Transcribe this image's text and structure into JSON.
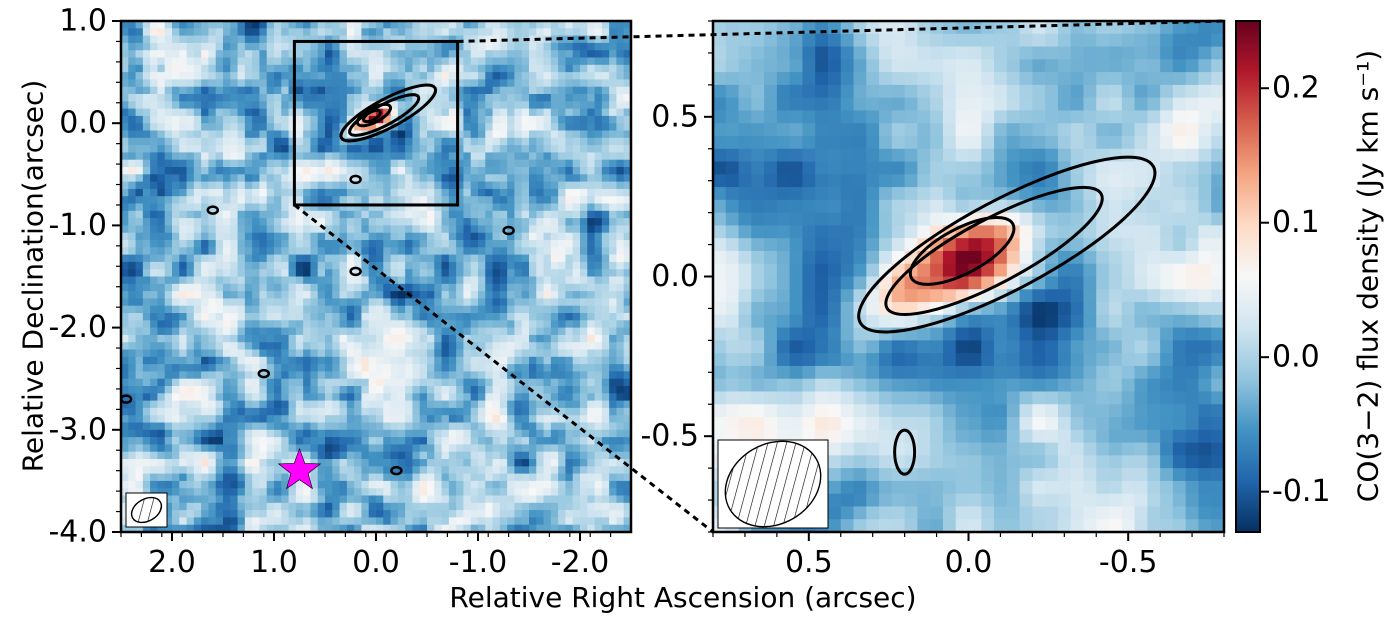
{
  "chart_data": [
    {
      "type": "heatmap",
      "panel": "left",
      "xlabel": "Relative Right Ascension (arcsec)",
      "ylabel": "Relative Declination(arcsec)",
      "xlim": [
        2.5,
        -2.5
      ],
      "ylim": [
        -4.0,
        1.0
      ],
      "xticks": [
        2.0,
        1.0,
        0.0,
        -1.0,
        -2.0
      ],
      "xtick_labels": [
        "2.0",
        "1.0",
        "0.0",
        "-1.0",
        "-2.0"
      ],
      "yticks": [
        1.0,
        0.0,
        -1.0,
        -2.0,
        -3.0,
        -4.0
      ],
      "ytick_labels": [
        "1.0",
        "0.0",
        "-1.0",
        "-2.0",
        "-3.0",
        "-4.0"
      ],
      "zoom_box": {
        "x": [
          0.8,
          -0.8
        ],
        "y": [
          -0.8,
          0.8
        ]
      },
      "markers": [
        {
          "kind": "star",
          "x": 0.75,
          "y": -3.4,
          "color": "#ff00ff"
        }
      ],
      "source": {
        "x": 0.0,
        "y": 0.05,
        "peak": 0.25,
        "extent_ra": 0.5,
        "extent_dec": 0.25,
        "pa_deg": 28
      },
      "contour_blobs": [
        {
          "x": 0.2,
          "y": -0.55
        },
        {
          "x": -1.3,
          "y": -1.05
        },
        {
          "x": 0.2,
          "y": -1.45
        },
        {
          "x": 1.1,
          "y": -2.45
        },
        {
          "x": 2.45,
          "y": -2.7
        },
        {
          "x": 1.6,
          "y": -0.85
        },
        {
          "x": -0.2,
          "y": -3.4
        }
      ],
      "beam": {
        "major": 0.35,
        "minor": 0.28,
        "pa_deg": 30
      }
    },
    {
      "type": "heatmap",
      "panel": "right",
      "xlim": [
        0.8,
        -0.8
      ],
      "ylim": [
        -0.8,
        0.8
      ],
      "xticks": [
        0.5,
        0.0,
        -0.5
      ],
      "xtick_labels": [
        "0.5",
        "0.0",
        "-0.5"
      ],
      "yticks": [
        0.5,
        0.0,
        -0.5
      ],
      "ytick_labels": [
        "0.5",
        "0.0",
        "-0.5"
      ],
      "source": {
        "x": 0.05,
        "y": 0.05,
        "peak": 0.25
      },
      "contour_blobs": [
        {
          "x": 0.2,
          "y": -0.55
        }
      ],
      "beam": {
        "major": 0.35,
        "minor": 0.28,
        "pa_deg": 30
      }
    },
    {
      "type": "colorbar",
      "label": "CO(3−2) flux density (Jy km s⁻¹)",
      "vmin": -0.13,
      "vmax": 0.25,
      "ticks": [
        0.2,
        0.1,
        0.0,
        -0.1
      ],
      "tick_labels": [
        "0.2",
        "0.1",
        "0.0",
        "-0.1"
      ],
      "cmap": [
        "#053061",
        "#2166ac",
        "#4393c3",
        "#92c5de",
        "#d1e5f0",
        "#f7f7f7",
        "#fddbc7",
        "#f4a582",
        "#d6604d",
        "#b2182b",
        "#67001f"
      ]
    }
  ]
}
